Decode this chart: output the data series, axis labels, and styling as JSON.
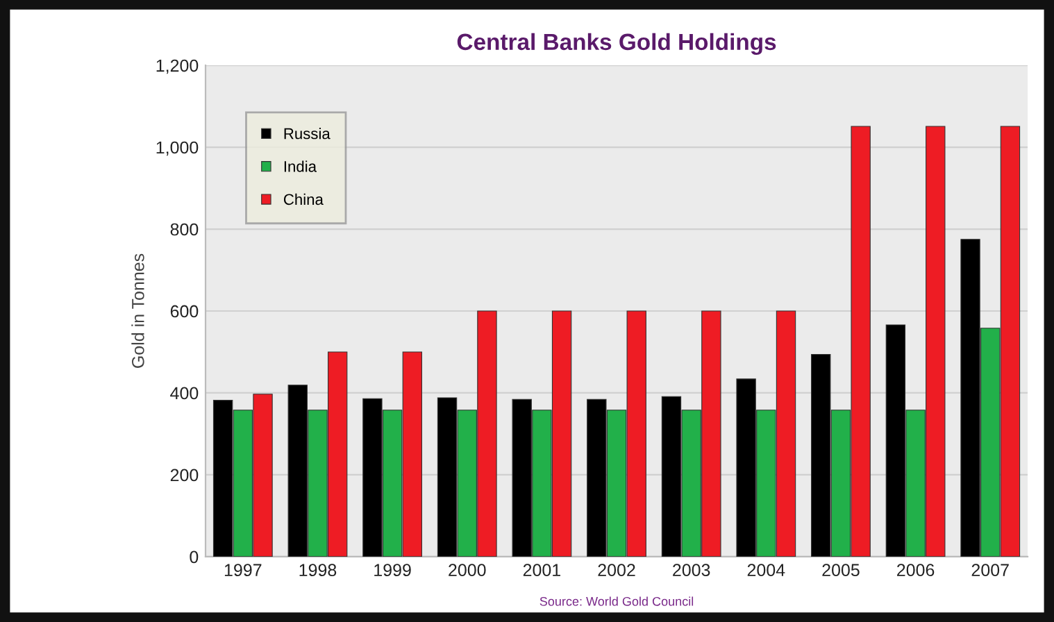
{
  "chart_data": {
    "type": "bar",
    "title": "Central Banks Gold Holdings",
    "ylabel": "Gold in Tonnes",
    "categories": [
      "1997",
      "1998",
      "1999",
      "2000",
      "2001",
      "2002",
      "2003",
      "2004",
      "2005",
      "2006",
      "2007"
    ],
    "series": [
      {
        "name": "Russia",
        "color": "#000000",
        "values": [
          382,
          419,
          386,
          388,
          384,
          384,
          391,
          434,
          494,
          566,
          775
        ]
      },
      {
        "name": "India",
        "color": "#22b04a",
        "values": [
          358,
          358,
          358,
          358,
          358,
          358,
          358,
          358,
          358,
          358,
          558
        ]
      },
      {
        "name": "China",
        "color": "#ee1c24",
        "values": [
          397,
          500,
          500,
          600,
          600,
          600,
          600,
          600,
          1051,
          1051,
          1051
        ]
      }
    ],
    "ylim": [
      0,
      1200
    ],
    "yticks": [
      0,
      200,
      400,
      600,
      800,
      {
        "value": 1000,
        "label": "1,000"
      },
      {
        "value": 1200,
        "label": "1,200"
      }
    ],
    "grid": "y",
    "legend": "top left",
    "annotations": [
      "Source: World Gold Council"
    ]
  }
}
